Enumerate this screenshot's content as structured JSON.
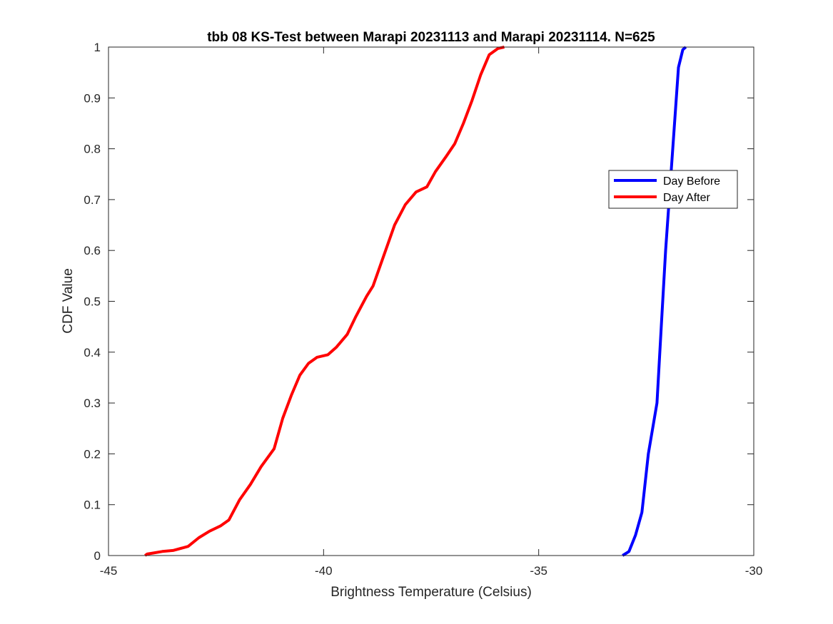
{
  "chart_data": {
    "type": "line",
    "title": "tbb 08 KS-Test between Marapi 20231113 and Marapi 20231114. N=625",
    "xlabel": "Brightness Temperature (Celsius)",
    "ylabel": "CDF Value",
    "xlim": [
      -45,
      -30
    ],
    "ylim": [
      0,
      1
    ],
    "xticks": [
      -45,
      -40,
      -35,
      -30
    ],
    "xtick_labels": [
      "-45",
      "-40",
      "-35",
      "-30"
    ],
    "yticks": [
      0,
      0.1,
      0.2,
      0.3,
      0.4,
      0.5,
      0.6,
      0.7,
      0.8,
      0.9,
      1
    ],
    "ytick_labels": [
      "0",
      "0.1",
      "0.2",
      "0.3",
      "0.4",
      "0.5",
      "0.6",
      "0.7",
      "0.8",
      "0.9",
      "1"
    ],
    "grid": false,
    "legend_position": "right",
    "series": [
      {
        "name": "Day Before",
        "color": "#0000ff",
        "points": [
          [
            -33.05,
            0.0
          ],
          [
            -32.9,
            0.008
          ],
          [
            -32.75,
            0.04
          ],
          [
            -32.6,
            0.085
          ],
          [
            -32.45,
            0.2
          ],
          [
            -32.25,
            0.3
          ],
          [
            -32.15,
            0.45
          ],
          [
            -32.05,
            0.6
          ],
          [
            -31.95,
            0.72
          ],
          [
            -31.85,
            0.84
          ],
          [
            -31.75,
            0.96
          ],
          [
            -31.65,
            0.995
          ],
          [
            -31.58,
            1.0
          ]
        ]
      },
      {
        "name": "Day After",
        "color": "#ff0000",
        "points": [
          [
            -44.15,
            0.0
          ],
          [
            -44.1,
            0.003
          ],
          [
            -43.95,
            0.005
          ],
          [
            -43.75,
            0.008
          ],
          [
            -43.5,
            0.01
          ],
          [
            -43.15,
            0.018
          ],
          [
            -42.9,
            0.035
          ],
          [
            -42.65,
            0.048
          ],
          [
            -42.4,
            0.058
          ],
          [
            -42.2,
            0.07
          ],
          [
            -41.95,
            0.11
          ],
          [
            -41.7,
            0.14
          ],
          [
            -41.45,
            0.175
          ],
          [
            -41.15,
            0.21
          ],
          [
            -40.95,
            0.27
          ],
          [
            -40.75,
            0.315
          ],
          [
            -40.55,
            0.355
          ],
          [
            -40.35,
            0.378
          ],
          [
            -40.15,
            0.39
          ],
          [
            -39.9,
            0.395
          ],
          [
            -39.7,
            0.41
          ],
          [
            -39.45,
            0.435
          ],
          [
            -39.25,
            0.47
          ],
          [
            -39.0,
            0.51
          ],
          [
            -38.85,
            0.53
          ],
          [
            -38.6,
            0.59
          ],
          [
            -38.35,
            0.65
          ],
          [
            -38.1,
            0.69
          ],
          [
            -37.85,
            0.715
          ],
          [
            -37.6,
            0.725
          ],
          [
            -37.4,
            0.755
          ],
          [
            -37.15,
            0.785
          ],
          [
            -36.95,
            0.81
          ],
          [
            -36.75,
            0.85
          ],
          [
            -36.55,
            0.895
          ],
          [
            -36.35,
            0.945
          ],
          [
            -36.15,
            0.985
          ],
          [
            -35.95,
            0.997
          ],
          [
            -35.8,
            1.0
          ]
        ]
      }
    ]
  }
}
